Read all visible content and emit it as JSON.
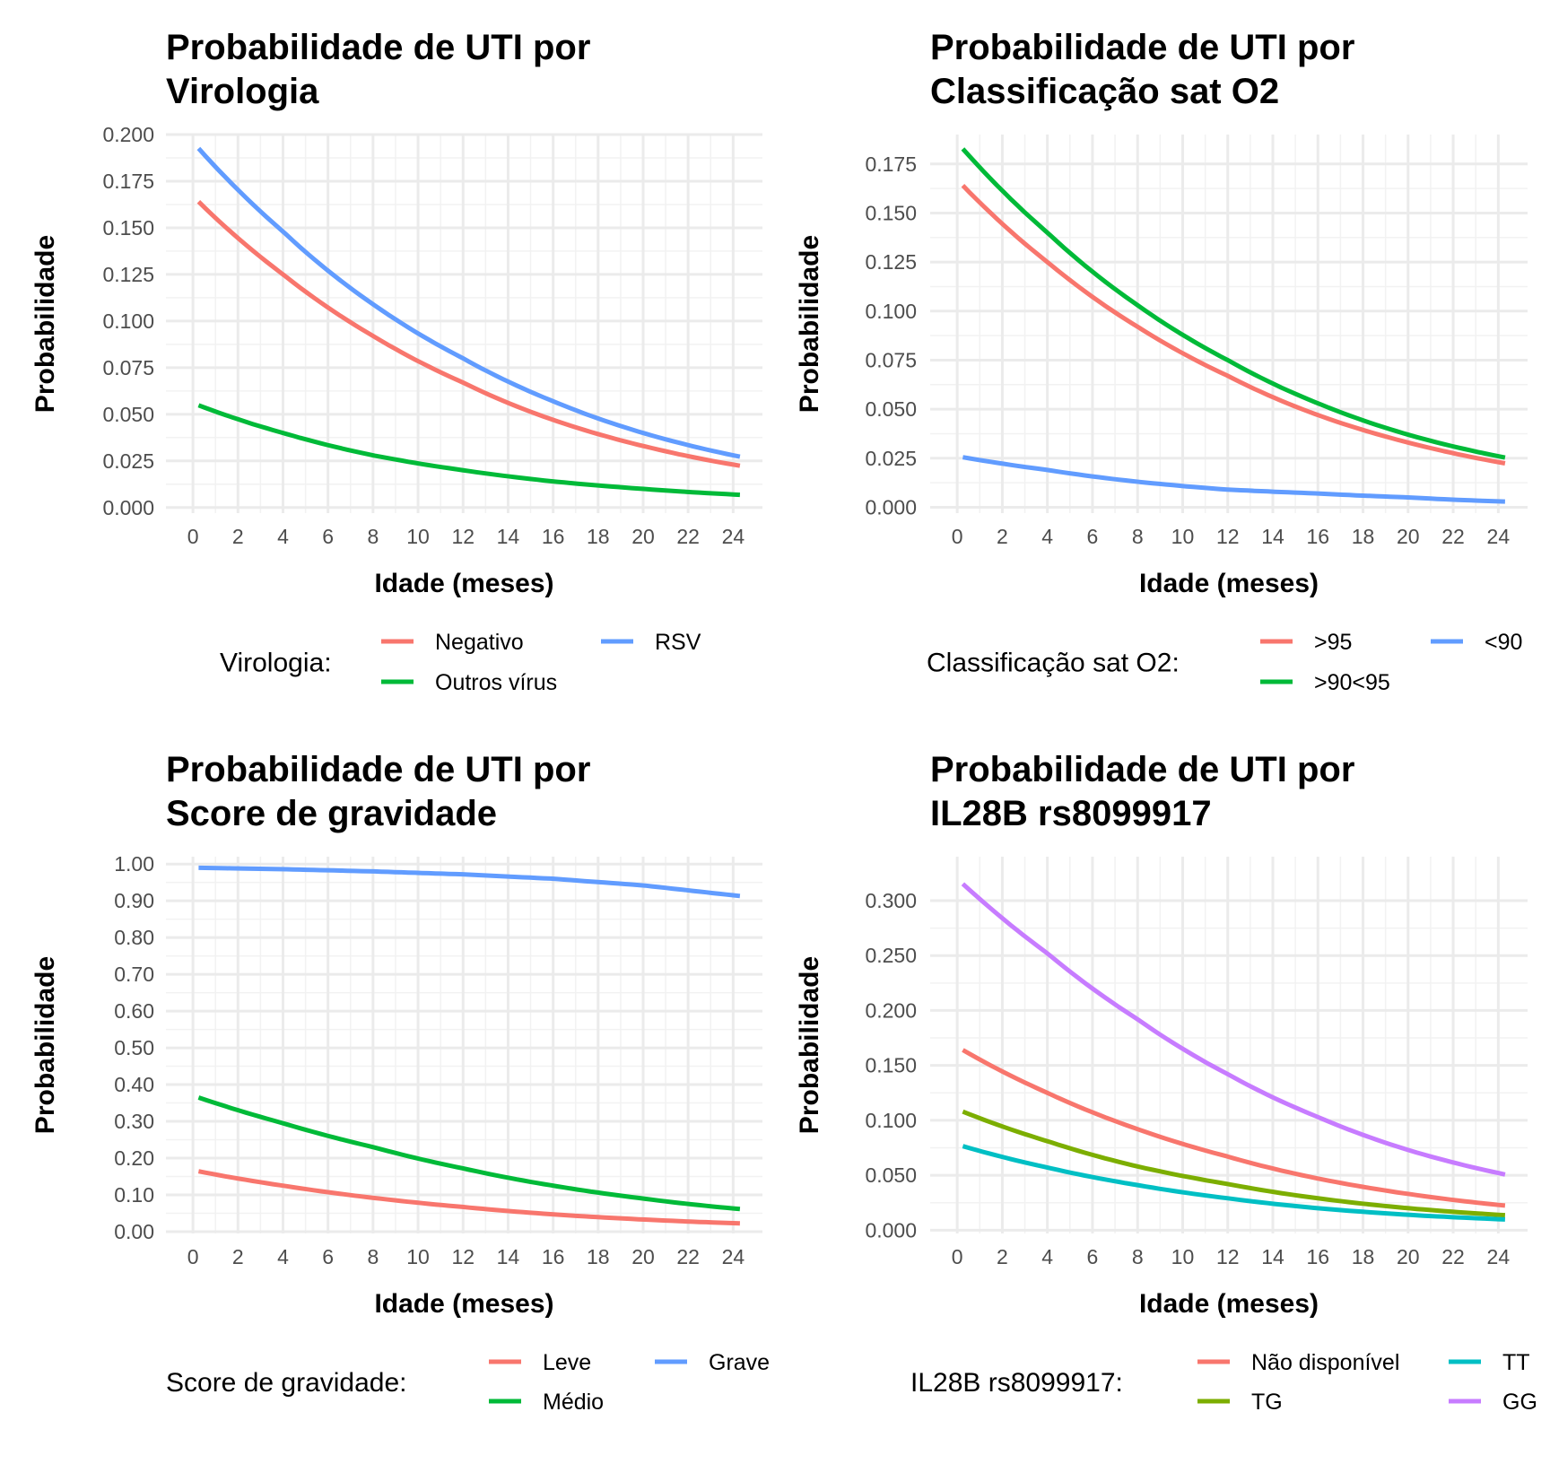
{
  "chart_data": [
    {
      "type": "line",
      "title": [
        "Probabilidade de UTI por",
        "Virologia"
      ],
      "xlabel": "Idade (meses)",
      "ylabel": "Probabilidade",
      "xlim": [
        -1.2,
        25.3
      ],
      "ylim": [
        -0.003,
        0.2
      ],
      "xticks": [
        0,
        2,
        4,
        6,
        8,
        10,
        12,
        14,
        16,
        18,
        20,
        22,
        24
      ],
      "yticks": [
        0,
        0.025,
        0.05,
        0.075,
        0.1,
        0.125,
        0.15,
        0.175,
        0.2
      ],
      "ytick_labels": [
        "0.000",
        "0.025",
        "0.050",
        "0.075",
        "0.100",
        "0.125",
        "0.150",
        "0.175",
        "0.200"
      ],
      "grid": true,
      "legend_title": "Virologia:",
      "legend_position": "bottom",
      "legend_layout": [
        [
          "Negativo",
          "RSV"
        ],
        [
          "Outros vírus"
        ]
      ],
      "series": [
        {
          "name": "Negativo",
          "color": "#F8766D",
          "x": [
            0,
            4,
            8,
            12,
            16,
            20,
            24
          ],
          "values": [
            0.167,
            0.125,
            0.092,
            0.067,
            0.047,
            0.033,
            0.023
          ]
        },
        {
          "name": "Outros vírus",
          "color": "#00BA38",
          "x": [
            0,
            4,
            8,
            12,
            16,
            20,
            24
          ],
          "values": [
            0.056,
            0.04,
            0.028,
            0.02,
            0.014,
            0.01,
            0.007
          ]
        },
        {
          "name": "RSV",
          "color": "#619CFF",
          "x": [
            0,
            4,
            8,
            12,
            16,
            20,
            24
          ],
          "values": [
            0.196,
            0.148,
            0.109,
            0.08,
            0.057,
            0.04,
            0.028
          ]
        }
      ]
    },
    {
      "type": "line",
      "title": [
        "Probabilidade de UTI por",
        "Classificação sat O2"
      ],
      "xlabel": "Idade (meses)",
      "ylabel": "Probabilidade",
      "xlim": [
        -1.2,
        25.3
      ],
      "ylim": [
        -0.003,
        0.19
      ],
      "xticks": [
        0,
        2,
        4,
        6,
        8,
        10,
        12,
        14,
        16,
        18,
        20,
        22,
        24
      ],
      "yticks": [
        0,
        0.025,
        0.05,
        0.075,
        0.1,
        0.125,
        0.15,
        0.175
      ],
      "ytick_labels": [
        "0.000",
        "0.025",
        "0.050",
        "0.075",
        "0.100",
        "0.125",
        "0.150",
        "0.175"
      ],
      "grid": true,
      "legend_title": "Classificação sat O2:",
      "legend_position": "bottom",
      "legend_layout": [
        [
          ">95",
          "<90"
        ],
        [
          ">90<95"
        ]
      ],
      "series": [
        {
          "name": ">95",
          "color": "#F8766D",
          "x": [
            0,
            4,
            8,
            12,
            16,
            20,
            24
          ],
          "values": [
            0.167,
            0.125,
            0.092,
            0.067,
            0.047,
            0.033,
            0.023
          ]
        },
        {
          "name": ">90<95",
          "color": "#00BA38",
          "x": [
            0,
            4,
            8,
            12,
            16,
            20,
            24
          ],
          "values": [
            0.186,
            0.14,
            0.103,
            0.075,
            0.053,
            0.037,
            0.026
          ]
        },
        {
          "name": "<90",
          "color": "#619CFF",
          "x": [
            0,
            4,
            8,
            12,
            16,
            20,
            24
          ],
          "values": [
            0.026,
            0.019,
            0.013,
            0.009,
            0.007,
            0.005,
            0.003
          ]
        }
      ]
    },
    {
      "type": "line",
      "title": [
        "Probabilidade de UTI por",
        "Score de gravidade"
      ],
      "xlabel": "Idade (meses)",
      "ylabel": "Probabilidade",
      "xlim": [
        -1.2,
        25.3
      ],
      "ylim": [
        -0.005,
        1.02
      ],
      "xticks": [
        0,
        2,
        4,
        6,
        8,
        10,
        12,
        14,
        16,
        18,
        20,
        22,
        24
      ],
      "yticks": [
        0,
        0.1,
        0.2,
        0.3,
        0.4,
        0.5,
        0.6,
        0.7,
        0.8,
        0.9,
        1.0
      ],
      "ytick_labels": [
        "0.00",
        "0.10",
        "0.20",
        "0.30",
        "0.40",
        "0.50",
        "0.60",
        "0.70",
        "0.80",
        "0.90",
        "1.00"
      ],
      "grid": true,
      "legend_title": "Score de gravidade:",
      "legend_position": "bottom",
      "legend_layout": [
        [
          "Leve",
          "Grave"
        ],
        [
          "Médio"
        ]
      ],
      "series": [
        {
          "name": "Leve",
          "color": "#F8766D",
          "x": [
            0,
            4,
            8,
            12,
            16,
            20,
            24
          ],
          "values": [
            0.167,
            0.125,
            0.092,
            0.067,
            0.047,
            0.033,
            0.023
          ]
        },
        {
          "name": "Médio",
          "color": "#00BA38",
          "x": [
            0,
            4,
            8,
            12,
            16,
            20,
            24
          ],
          "values": [
            0.37,
            0.295,
            0.23,
            0.172,
            0.125,
            0.09,
            0.063
          ]
        },
        {
          "name": "Grave",
          "color": "#619CFF",
          "x": [
            0,
            4,
            8,
            12,
            16,
            20,
            24
          ],
          "values": [
            0.99,
            0.986,
            0.98,
            0.972,
            0.96,
            0.942,
            0.915
          ]
        }
      ]
    },
    {
      "type": "line",
      "title": [
        "Probabilidade de UTI por",
        "IL28B rs8099917"
      ],
      "xlabel": "Idade (meses)",
      "ylabel": "Probabilidade",
      "xlim": [
        -1.2,
        25.3
      ],
      "ylim": [
        -0.003,
        0.34
      ],
      "xticks": [
        0,
        2,
        4,
        6,
        8,
        10,
        12,
        14,
        16,
        18,
        20,
        22,
        24
      ],
      "yticks": [
        0,
        0.05,
        0.1,
        0.15,
        0.2,
        0.25,
        0.3
      ],
      "ytick_labels": [
        "0.000",
        "0.050",
        "0.100",
        "0.150",
        "0.200",
        "0.250",
        "0.300"
      ],
      "grid": true,
      "legend_title": "IL28B rs8099917:",
      "legend_position": "bottom",
      "legend_layout": [
        [
          "Não disponível",
          "TT"
        ],
        [
          "TG",
          "GG"
        ]
      ],
      "series": [
        {
          "name": "Não disponível",
          "color": "#F8766D",
          "x": [
            0,
            4,
            8,
            12,
            16,
            20,
            24
          ],
          "values": [
            0.167,
            0.125,
            0.092,
            0.067,
            0.047,
            0.033,
            0.023
          ]
        },
        {
          "name": "TG",
          "color": "#7CAE00",
          "x": [
            0,
            4,
            8,
            12,
            16,
            20,
            24
          ],
          "values": [
            0.11,
            0.081,
            0.058,
            0.042,
            0.029,
            0.02,
            0.014
          ]
        },
        {
          "name": "TT",
          "color": "#00BFC4",
          "x": [
            0,
            4,
            8,
            12,
            16,
            20,
            24
          ],
          "values": [
            0.078,
            0.057,
            0.041,
            0.029,
            0.02,
            0.014,
            0.01
          ]
        },
        {
          "name": "GG",
          "color": "#C77CFF",
          "x": [
            0,
            4,
            8,
            12,
            16,
            20,
            24
          ],
          "values": [
            0.32,
            0.252,
            0.192,
            0.142,
            0.103,
            0.073,
            0.052
          ]
        }
      ]
    }
  ]
}
